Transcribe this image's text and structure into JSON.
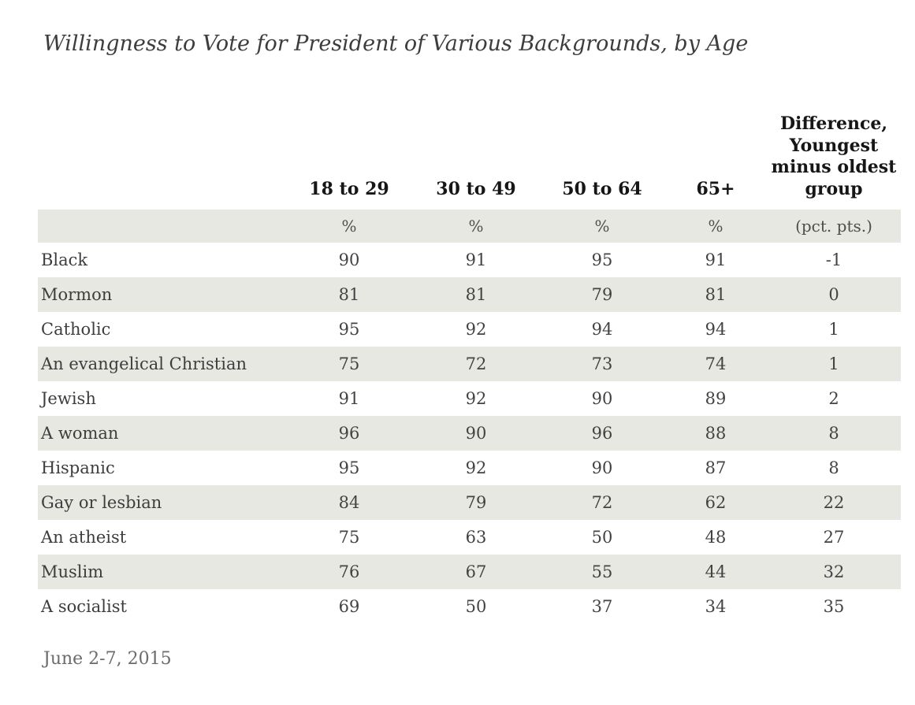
{
  "title": "Willingness to Vote for President of Various Backgrounds, by Age",
  "header": {
    "age_columns": [
      "18 to 29",
      "30 to 49",
      "50 to 64",
      "65+"
    ],
    "difference_column": "Difference, Youngest minus oldest group"
  },
  "units": {
    "percent": "%",
    "difference": "(pct. pts.)"
  },
  "footer": "June 2-7, 2015",
  "colors": {
    "row_shade": "#e8e8e3",
    "header_text": "#161616",
    "body_text": "#434343",
    "footer_text": "#6b6b6b"
  },
  "chart_data": {
    "type": "table",
    "title": "Willingness to Vote for President of Various Backgrounds, by Age",
    "categories": [
      "Black",
      "Mormon",
      "Catholic",
      "An evangelical Christian",
      "Jewish",
      "A woman",
      "Hispanic",
      "Gay or lesbian",
      "An atheist",
      "Muslim",
      "A socialist"
    ],
    "series": [
      {
        "name": "18 to 29",
        "unit": "%",
        "values": [
          90,
          81,
          95,
          75,
          91,
          96,
          95,
          84,
          75,
          76,
          69
        ]
      },
      {
        "name": "30 to 49",
        "unit": "%",
        "values": [
          91,
          81,
          92,
          72,
          92,
          90,
          92,
          79,
          63,
          67,
          50
        ]
      },
      {
        "name": "50 to 64",
        "unit": "%",
        "values": [
          95,
          79,
          94,
          73,
          90,
          96,
          90,
          72,
          50,
          55,
          37
        ]
      },
      {
        "name": "65+",
        "unit": "%",
        "values": [
          91,
          81,
          94,
          74,
          89,
          88,
          87,
          62,
          48,
          44,
          34
        ]
      },
      {
        "name": "Difference, Youngest minus oldest group",
        "unit": "(pct. pts.)",
        "values": [
          -1,
          0,
          1,
          1,
          2,
          8,
          8,
          22,
          27,
          32,
          35
        ]
      }
    ],
    "footnote": "June 2-7, 2015"
  }
}
